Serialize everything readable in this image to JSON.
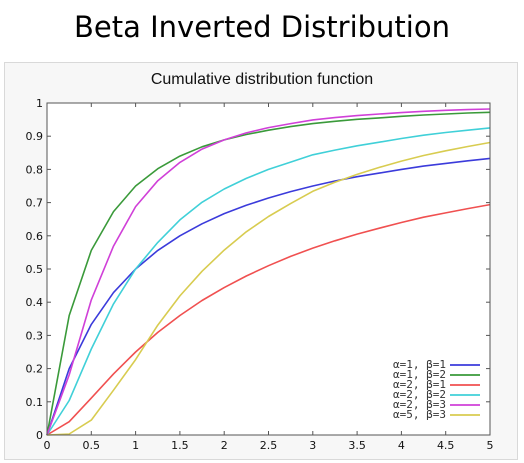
{
  "page": {
    "title": "Beta Inverted Distribution"
  },
  "chart_data": {
    "type": "line",
    "title": "Cumulative distribution function",
    "xlabel": "",
    "ylabel": "",
    "xlim": [
      0,
      5
    ],
    "ylim": [
      0,
      1
    ],
    "x_ticks": [
      0,
      0.5,
      1,
      1.5,
      2,
      2.5,
      3,
      3.5,
      4,
      4.5,
      5
    ],
    "x_tick_labels": [
      "0",
      "0.5",
      "1",
      "1.5",
      "2",
      "2.5",
      "3",
      "3.5",
      "4",
      "4.5",
      "5"
    ],
    "y_ticks": [
      0,
      0.1,
      0.2,
      0.3,
      0.4,
      0.5,
      0.6,
      0.7,
      0.8,
      0.9,
      1
    ],
    "y_tick_labels": [
      "0",
      "0.1",
      "0.2",
      "0.3",
      "0.4",
      "0.5",
      "0.6",
      "0.7",
      "0.8",
      "0.9",
      "1"
    ],
    "grid": false,
    "legend_position": "bottom-right",
    "x": [
      0,
      0.25,
      0.5,
      0.75,
      1,
      1.25,
      1.5,
      1.75,
      2,
      2.25,
      2.5,
      2.75,
      3,
      3.25,
      3.5,
      3.75,
      4,
      4.25,
      4.5,
      4.75,
      5
    ],
    "series": [
      {
        "name": "α=1, β=1",
        "color": "#3b3bdb",
        "values": [
          0,
          0.2,
          0.333,
          0.429,
          0.5,
          0.556,
          0.6,
          0.636,
          0.667,
          0.692,
          0.714,
          0.733,
          0.75,
          0.765,
          0.778,
          0.789,
          0.8,
          0.81,
          0.818,
          0.826,
          0.833
        ]
      },
      {
        "name": "α=1, β=2",
        "color": "#3a9a3a",
        "values": [
          0,
          0.36,
          0.556,
          0.673,
          0.75,
          0.802,
          0.84,
          0.868,
          0.889,
          0.905,
          0.918,
          0.929,
          0.938,
          0.945,
          0.951,
          0.955,
          0.96,
          0.964,
          0.967,
          0.97,
          0.972
        ]
      },
      {
        "name": "α=2, β=1",
        "color": "#f05050",
        "values": [
          0,
          0.04,
          0.111,
          0.184,
          0.25,
          0.309,
          0.36,
          0.405,
          0.444,
          0.479,
          0.51,
          0.538,
          0.563,
          0.585,
          0.605,
          0.623,
          0.64,
          0.656,
          0.669,
          0.682,
          0.694
        ]
      },
      {
        "name": "α=2, β=2",
        "color": "#40d0d8",
        "values": [
          0,
          0.104,
          0.259,
          0.395,
          0.5,
          0.58,
          0.648,
          0.701,
          0.741,
          0.773,
          0.8,
          0.822,
          0.844,
          0.858,
          0.871,
          0.882,
          0.893,
          0.903,
          0.911,
          0.918,
          0.925
        ]
      },
      {
        "name": "α=2, β=3",
        "color": "#d040d8",
        "values": [
          0,
          0.181,
          0.407,
          0.569,
          0.688,
          0.766,
          0.821,
          0.861,
          0.889,
          0.91,
          0.926,
          0.938,
          0.949,
          0.956,
          0.962,
          0.967,
          0.971,
          0.975,
          0.978,
          0.98,
          0.982
        ]
      },
      {
        "name": "α=5, β=3",
        "color": "#d8cc50",
        "values": [
          0,
          0.003,
          0.045,
          0.135,
          0.227,
          0.331,
          0.419,
          0.493,
          0.557,
          0.612,
          0.658,
          0.697,
          0.734,
          0.761,
          0.785,
          0.806,
          0.825,
          0.842,
          0.856,
          0.869,
          0.881
        ]
      }
    ]
  }
}
